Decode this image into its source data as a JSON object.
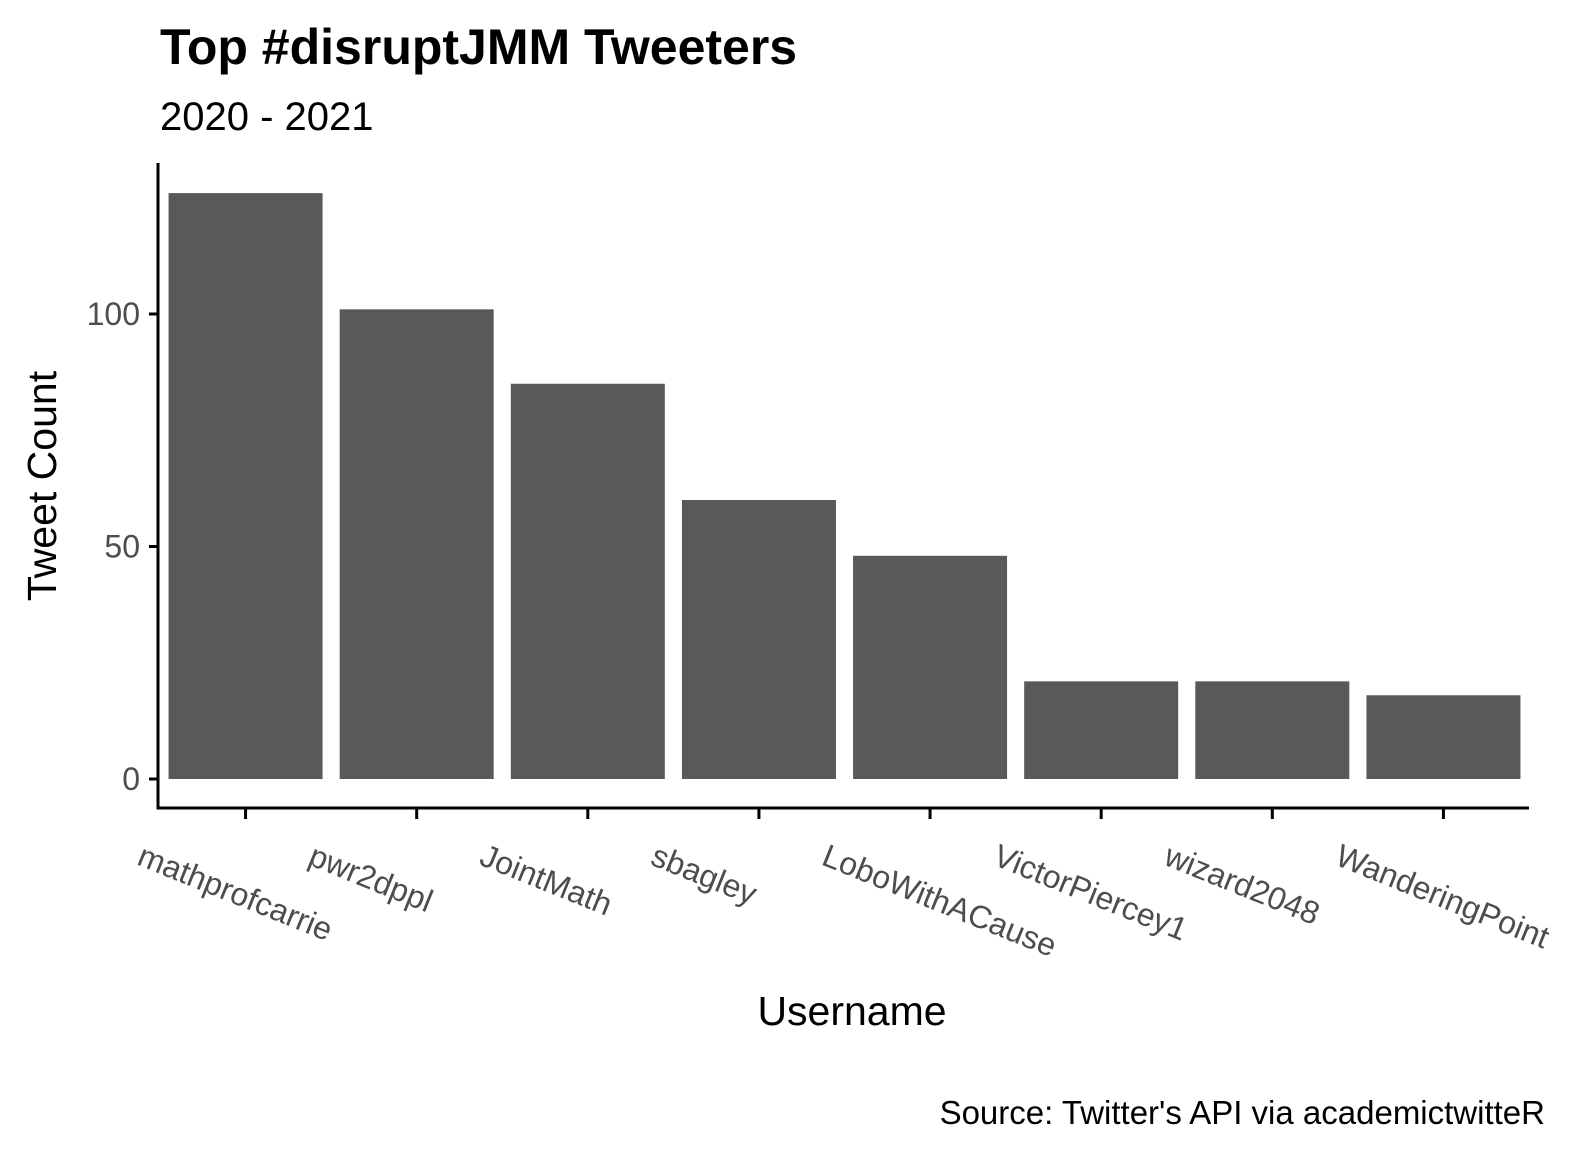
{
  "chart_data": {
    "type": "bar",
    "title": "Top #disruptJMM Tweeters",
    "subtitle": "2020 - 2021",
    "xlabel": "Username",
    "ylabel": "Tweet Count",
    "caption": "Source: Twitter's API via academictwitteR",
    "categories": [
      "mathprofcarrie",
      "pwr2dppl",
      "JointMath",
      "sbagley",
      "LoboWithACause",
      "VictorPiercey1",
      "wizard2048",
      "WanderingPoint"
    ],
    "values": [
      126,
      101,
      85,
      60,
      48,
      21,
      21,
      18
    ],
    "yticks": [
      0,
      50,
      100
    ],
    "ylim": [
      0,
      126
    ],
    "grid": false,
    "legend": "none",
    "colors": {
      "bar": "#595959",
      "axis": "#000000",
      "tick_text": "#4d4d4d",
      "text": "#000000"
    }
  }
}
